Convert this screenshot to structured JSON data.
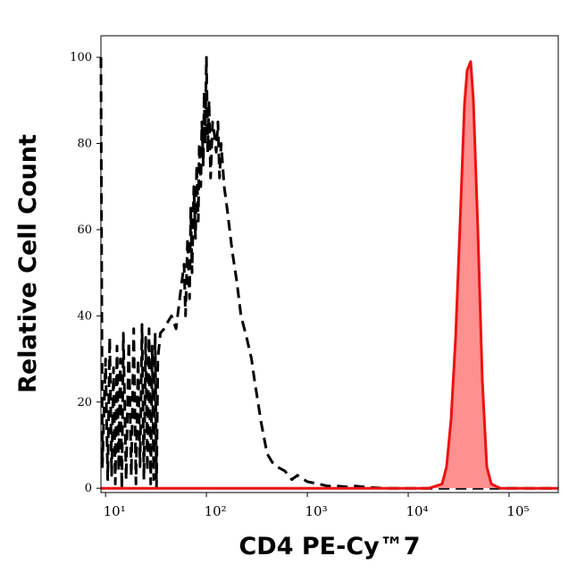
{
  "chart_data": {
    "type": "histogram-overlay",
    "x_label": "CD4 PE-Cy™7",
    "y_label": "Relative Cell Count",
    "xscale": "log",
    "xlim": [
      9,
      307000
    ],
    "ylim": [
      -1,
      105
    ],
    "xticks": [
      {
        "value": 10,
        "label": "10¹"
      },
      {
        "value": 100,
        "label": "10²"
      },
      {
        "value": 1000,
        "label": "10³"
      },
      {
        "value": 10000,
        "label": "10⁴"
      },
      {
        "value": 100000,
        "label": "10⁵"
      }
    ],
    "yticks": [
      0,
      20,
      40,
      60,
      80,
      100
    ],
    "series": [
      {
        "color": "#000000",
        "style": "dashed",
        "filled": false,
        "x": [
          9,
          9.3,
          10,
          10.5,
          11,
          11.5,
          12,
          12.5,
          13,
          13.5,
          14,
          14.5,
          15,
          16,
          17,
          18,
          19,
          20,
          21,
          22,
          23,
          24,
          25,
          26,
          27,
          28,
          29,
          30,
          31,
          32,
          33,
          35,
          38,
          40,
          45,
          50,
          55,
          60,
          62,
          65,
          68,
          70,
          72,
          75,
          78,
          80,
          83,
          85,
          88,
          90,
          93,
          95,
          97,
          100,
          103,
          106,
          110,
          115,
          120,
          125,
          130,
          135,
          140,
          150,
          160,
          180,
          200,
          220,
          250,
          280,
          300,
          350,
          400,
          450,
          500,
          600,
          700,
          800,
          1000,
          1300,
          1600,
          2000,
          2500,
          3000,
          4000,
          6000,
          10000,
          307000
        ],
        "values": [
          100,
          5,
          30,
          2,
          35,
          3,
          28,
          1,
          33,
          4,
          30,
          0,
          36,
          2,
          34,
          3,
          37,
          1,
          30,
          5,
          38,
          2,
          35,
          4,
          37,
          1,
          33,
          2,
          36,
          0,
          30,
          36,
          37,
          38,
          40,
          37,
          45,
          52,
          40,
          58,
          44,
          65,
          50,
          70,
          58,
          75,
          62,
          80,
          70,
          85,
          75,
          92,
          80,
          100,
          78,
          90,
          72,
          85,
          82,
          78,
          85,
          72,
          80,
          70,
          65,
          55,
          48,
          40,
          35,
          30,
          25,
          15,
          8,
          6,
          5,
          4,
          2,
          3,
          1.5,
          1,
          0.5,
          0.5,
          0.3,
          0.5,
          0.2,
          0,
          0,
          0
        ]
      },
      {
        "color": "#ee1111",
        "fill": "#ff9090",
        "style": "solid",
        "filled": true,
        "x": [
          9,
          16000,
          21700,
          24000,
          26600,
          29500,
          32600,
          36100,
          38400,
          41600,
          44300,
          49000,
          54300,
          60100,
          66600,
          81700,
          307000
        ],
        "values": [
          0,
          0,
          1,
          5,
          16,
          35,
          61,
          89,
          97,
          99,
          90,
          60,
          25,
          5,
          1,
          0,
          0
        ]
      }
    ]
  }
}
